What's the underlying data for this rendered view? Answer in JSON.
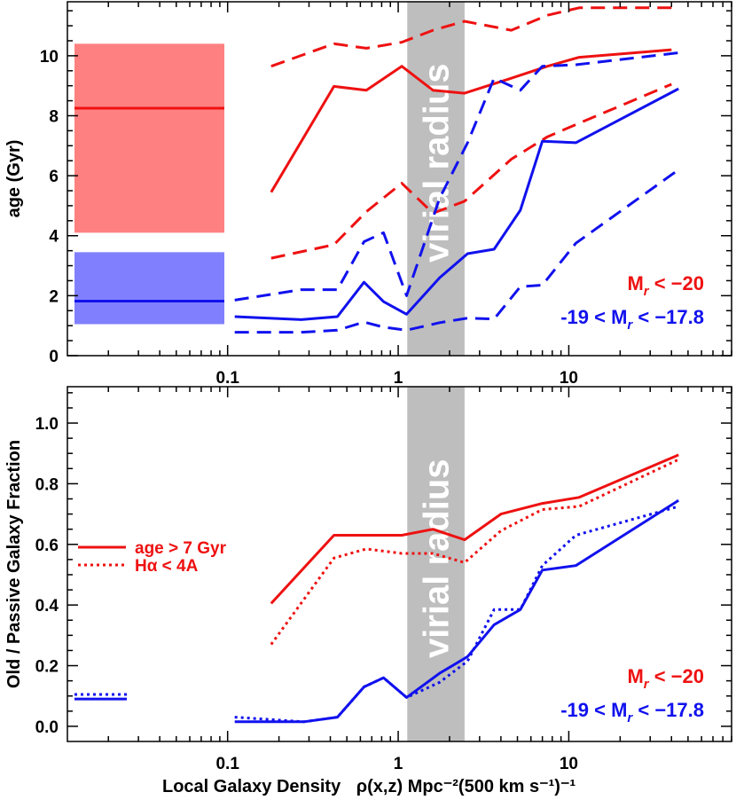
{
  "colors": {
    "red": "#ee1111",
    "blue": "#1111ee",
    "red_band": "#ff8080",
    "blue_band": "#8080ff",
    "virial_band": "#bebebe"
  },
  "x_axis": {
    "scale": "log",
    "range": [
      0.0115,
      90
    ],
    "tick_labels": [
      "0.1",
      "1",
      "10"
    ],
    "label_prefix": "Local Galaxy Density",
    "label_formula": "ρ(x,z) Mpc⁻²(500 km s⁻¹)⁻¹"
  },
  "virial_radius": {
    "label": "virial radius",
    "x_range": [
      1.13,
      2.45
    ]
  },
  "chart_data": [
    {
      "type": "line",
      "panel": "top",
      "ylabel": "age (Gyr)",
      "ylim": [
        0,
        11.8
      ],
      "y_ticks": [
        "0",
        "2",
        "4",
        "6",
        "8",
        "10"
      ],
      "labels": {
        "red": "M_r < -20",
        "blue": "-19 < M_r < -17.8"
      },
      "field_bands": [
        {
          "color": "red",
          "y_low": 4.1,
          "y_high": 10.4,
          "median": 8.25
        },
        {
          "color": "blue",
          "y_low": 1.05,
          "y_high": 3.45,
          "median": 1.82
        }
      ],
      "series": [
        {
          "color": "red",
          "style": "solid",
          "x": [
            0.18,
            0.42,
            0.65,
            1.05,
            1.6,
            2.45,
            4.6,
            7.5,
            11.5,
            40
          ],
          "y": [
            5.45,
            8.98,
            8.85,
            9.65,
            8.85,
            8.75,
            9.25,
            9.65,
            9.95,
            10.2
          ]
        },
        {
          "color": "red",
          "style": "dashed",
          "x": [
            0.18,
            0.42,
            0.65,
            1.05,
            1.6,
            2.45,
            4.6,
            7.5,
            11.5,
            40
          ],
          "y": [
            9.65,
            10.4,
            10.25,
            10.45,
            10.85,
            11.15,
            10.85,
            11.35,
            11.6,
            11.6
          ]
        },
        {
          "color": "red",
          "style": "dashed",
          "x": [
            0.18,
            0.42,
            0.65,
            1.05,
            1.6,
            2.45,
            4.6,
            7.5,
            11.5,
            40
          ],
          "y": [
            3.25,
            3.7,
            4.8,
            5.75,
            4.75,
            5.15,
            6.55,
            7.3,
            7.75,
            9.05
          ]
        },
        {
          "color": "blue",
          "style": "solid",
          "x": [
            0.11,
            0.27,
            0.44,
            0.63,
            0.82,
            1.12,
            1.75,
            2.55,
            3.65,
            5.2,
            7.0,
            11.0,
            44
          ],
          "y": [
            1.3,
            1.2,
            1.3,
            2.45,
            1.8,
            1.38,
            2.6,
            3.4,
            3.55,
            4.85,
            7.15,
            7.1,
            8.9
          ]
        },
        {
          "color": "blue",
          "style": "dashed",
          "x": [
            0.11,
            0.27,
            0.44,
            0.63,
            0.82,
            1.12,
            1.75,
            2.55,
            3.65,
            5.2,
            7.0,
            11.0,
            44
          ],
          "y": [
            1.85,
            2.2,
            2.2,
            3.8,
            4.1,
            2.0,
            5.25,
            7.1,
            9.25,
            8.85,
            9.65,
            9.7,
            10.1
          ]
        },
        {
          "color": "blue",
          "style": "dashed",
          "x": [
            0.11,
            0.27,
            0.44,
            0.63,
            0.82,
            1.12,
            1.75,
            2.55,
            3.65,
            5.2,
            7.0,
            11.0,
            44
          ],
          "y": [
            0.78,
            0.78,
            0.85,
            1.12,
            0.95,
            0.85,
            1.1,
            1.25,
            1.22,
            2.3,
            2.35,
            3.75,
            6.2
          ]
        }
      ]
    },
    {
      "type": "line",
      "panel": "bottom",
      "ylabel": "Old / Passive Galaxy Fraction",
      "ylim": [
        -0.05,
        1.12
      ],
      "y_ticks": [
        "0.0",
        "0.2",
        "0.4",
        "0.6",
        "0.8",
        "1.0"
      ],
      "labels": {
        "red": "M_r < -20",
        "blue": "-19 < M_r < -17.8"
      },
      "legend": [
        {
          "label": "age > 7 Gyr",
          "style": "solid"
        },
        {
          "label": "Hα < 4A",
          "style": "dotted"
        }
      ],
      "field_values": [
        {
          "color": "blue",
          "style": "solid",
          "y": 0.09
        },
        {
          "color": "blue",
          "style": "dotted",
          "y": 0.105
        }
      ],
      "series": [
        {
          "color": "red",
          "style": "solid",
          "x": [
            0.18,
            0.42,
            0.65,
            1.05,
            1.6,
            2.45,
            4.0,
            7.0,
            11.5,
            44
          ],
          "y": [
            0.405,
            0.63,
            0.63,
            0.63,
            0.65,
            0.615,
            0.7,
            0.735,
            0.755,
            0.895
          ]
        },
        {
          "color": "red",
          "style": "dotted",
          "x": [
            0.18,
            0.42,
            0.65,
            1.05,
            1.6,
            2.45,
            4.0,
            7.0,
            11.5,
            44
          ],
          "y": [
            0.27,
            0.555,
            0.585,
            0.57,
            0.57,
            0.54,
            0.645,
            0.715,
            0.725,
            0.88
          ]
        },
        {
          "color": "blue",
          "style": "solid",
          "x": [
            0.11,
            0.28,
            0.44,
            0.63,
            0.82,
            1.12,
            1.75,
            2.55,
            3.65,
            5.2,
            7.0,
            11.0,
            44
          ],
          "y": [
            0.015,
            0.015,
            0.03,
            0.13,
            0.16,
            0.095,
            0.175,
            0.23,
            0.335,
            0.385,
            0.515,
            0.53,
            0.745
          ]
        },
        {
          "color": "blue",
          "style": "dotted",
          "x": [
            0.11,
            0.28,
            0.44,
            0.63,
            0.82,
            1.12,
            1.75,
            2.55,
            3.65,
            5.2,
            7.0,
            11.0,
            44
          ],
          "y": [
            0.03,
            0.015,
            0.03,
            0.13,
            0.16,
            0.095,
            0.145,
            0.215,
            0.385,
            0.385,
            0.53,
            0.63,
            0.725
          ]
        }
      ]
    }
  ]
}
